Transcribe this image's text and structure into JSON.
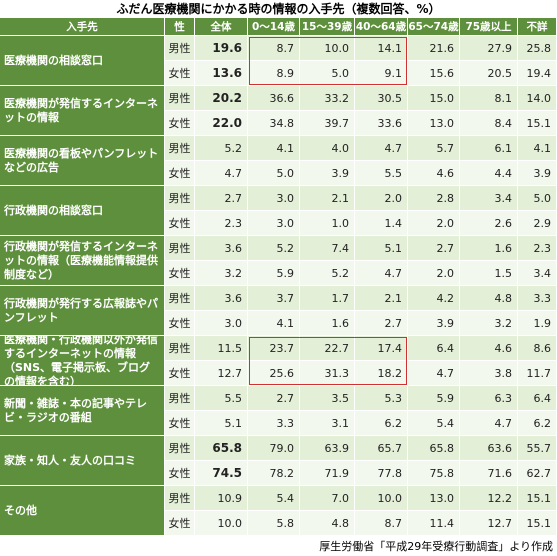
{
  "title": "ふだん医療機関にかかる時の情報の入手先（複数回答、%）",
  "headers": [
    "入手先",
    "性",
    "全体",
    "0～14歳",
    "15～39歳",
    "40～64歳",
    "65～74歳",
    "75歳以上",
    "不詳"
  ],
  "groups": [
    {
      "source": "医療機関の相談窓口",
      "bold_total": true,
      "boxed": true,
      "rows": [
        {
          "sex": "男性",
          "values": [
            "19.6",
            "8.7",
            "10.0",
            "14.1",
            "21.6",
            "27.9",
            "25.8"
          ]
        },
        {
          "sex": "女性",
          "values": [
            "13.6",
            "8.9",
            "5.0",
            "9.1",
            "15.6",
            "20.5",
            "19.4"
          ]
        }
      ]
    },
    {
      "source": "医療機関が発信するインターネットの情報",
      "bold_total": true,
      "boxed": false,
      "rows": [
        {
          "sex": "男性",
          "values": [
            "20.2",
            "36.6",
            "33.2",
            "30.5",
            "15.0",
            "8.1",
            "14.0"
          ]
        },
        {
          "sex": "女性",
          "values": [
            "22.0",
            "34.8",
            "39.7",
            "33.6",
            "13.0",
            "8.4",
            "15.1"
          ]
        }
      ]
    },
    {
      "source": "医療機関の看板やパンフレットなどの広告",
      "bold_total": false,
      "boxed": false,
      "rows": [
        {
          "sex": "男性",
          "values": [
            "5.2",
            "4.1",
            "4.0",
            "4.7",
            "5.7",
            "6.1",
            "4.1"
          ]
        },
        {
          "sex": "女性",
          "values": [
            "4.7",
            "5.0",
            "3.9",
            "5.5",
            "4.6",
            "4.4",
            "3.9"
          ]
        }
      ]
    },
    {
      "source": "行政機関の相談窓口",
      "bold_total": false,
      "boxed": false,
      "rows": [
        {
          "sex": "男性",
          "values": [
            "2.7",
            "3.0",
            "2.1",
            "2.0",
            "2.8",
            "3.4",
            "5.0"
          ]
        },
        {
          "sex": "女性",
          "values": [
            "2.3",
            "3.0",
            "1.0",
            "1.4",
            "2.0",
            "2.6",
            "2.9"
          ]
        }
      ]
    },
    {
      "source": "行政機関が発信するインターネットの情報（医療機能情報提供制度など）",
      "bold_total": false,
      "boxed": false,
      "rows": [
        {
          "sex": "男性",
          "values": [
            "3.6",
            "5.2",
            "7.4",
            "5.1",
            "2.7",
            "1.6",
            "2.3"
          ]
        },
        {
          "sex": "女性",
          "values": [
            "3.2",
            "5.9",
            "5.2",
            "4.7",
            "2.0",
            "1.5",
            "3.4"
          ]
        }
      ]
    },
    {
      "source": "行政機関が発行する広報誌やパンフレット",
      "bold_total": false,
      "boxed": false,
      "rows": [
        {
          "sex": "男性",
          "values": [
            "3.6",
            "3.7",
            "1.7",
            "2.1",
            "4.2",
            "4.8",
            "3.3"
          ]
        },
        {
          "sex": "女性",
          "values": [
            "3.0",
            "4.1",
            "1.6",
            "2.7",
            "3.9",
            "3.2",
            "1.9"
          ]
        }
      ]
    },
    {
      "source": "医療機関・行政機関以外が発信するインターネットの情報（SNS、電子掲示板、ブログの情報を含む）",
      "bold_total": false,
      "boxed": true,
      "rows": [
        {
          "sex": "男性",
          "values": [
            "11.5",
            "23.7",
            "22.7",
            "17.4",
            "6.4",
            "4.6",
            "8.6"
          ]
        },
        {
          "sex": "女性",
          "values": [
            "12.7",
            "25.6",
            "31.3",
            "18.2",
            "4.7",
            "3.8",
            "11.7"
          ]
        }
      ]
    },
    {
      "source": "新聞・雑誌・本の記事やテレビ・ラジオの番組",
      "bold_total": false,
      "boxed": false,
      "rows": [
        {
          "sex": "男性",
          "values": [
            "5.5",
            "2.7",
            "3.5",
            "5.3",
            "5.9",
            "6.3",
            "6.4"
          ]
        },
        {
          "sex": "女性",
          "values": [
            "5.1",
            "3.3",
            "3.1",
            "6.2",
            "5.4",
            "4.7",
            "6.2"
          ]
        }
      ]
    },
    {
      "source": "家族・知人・友人の口コミ",
      "bold_total": true,
      "boxed": false,
      "rows": [
        {
          "sex": "男性",
          "values": [
            "65.8",
            "79.0",
            "63.9",
            "65.7",
            "65.8",
            "63.6",
            "55.7"
          ]
        },
        {
          "sex": "女性",
          "values": [
            "74.5",
            "78.2",
            "71.9",
            "77.8",
            "75.8",
            "71.6",
            "62.7"
          ]
        }
      ]
    },
    {
      "source": "その他",
      "bold_total": false,
      "boxed": false,
      "rows": [
        {
          "sex": "男性",
          "values": [
            "10.9",
            "5.4",
            "7.0",
            "10.0",
            "13.0",
            "12.2",
            "15.1"
          ]
        },
        {
          "sex": "女性",
          "values": [
            "10.0",
            "5.8",
            "4.8",
            "8.7",
            "11.4",
            "12.7",
            "15.1"
          ]
        }
      ]
    }
  ],
  "footer": "厚生労働省「平成29年受療行動調査」より作成"
}
